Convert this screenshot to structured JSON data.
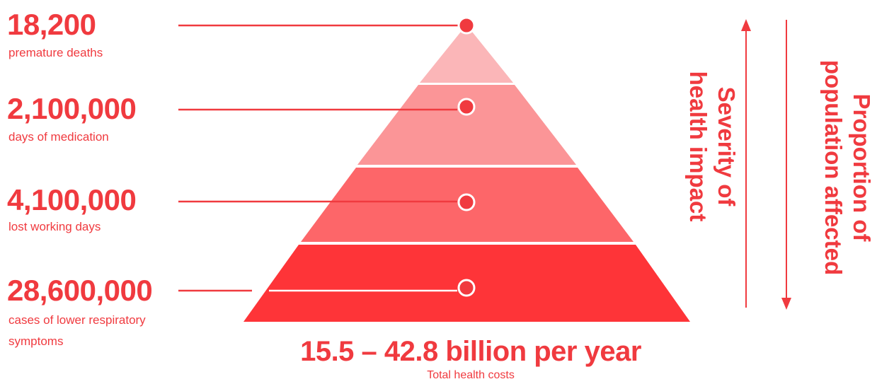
{
  "colors": {
    "accent": "#f03a3f",
    "tier_1_fill": "#fbb6b8",
    "tier_2_fill": "#fb9597",
    "tier_3_fill": "#fd6669",
    "tier_4_fill": "#fe3438"
  },
  "tiers": [
    {
      "value": "18,200",
      "label": "premature deaths"
    },
    {
      "value": "2,100,000",
      "label": "days of medication"
    },
    {
      "value": "4,100,000",
      "label": "lost working days"
    },
    {
      "value": "28,600,000",
      "label": "cases of lower respiratory",
      "label_line2": "symptoms"
    }
  ],
  "total": {
    "value": "15.5 – 42.8 billion per year",
    "caption": "Total health costs"
  },
  "axes": {
    "severity": {
      "line1": "Severity of",
      "line2": "health impact",
      "arrow_direction": "up"
    },
    "proportion": {
      "line1": "Proportion of",
      "line2": "population affected",
      "arrow_direction": "down"
    }
  }
}
